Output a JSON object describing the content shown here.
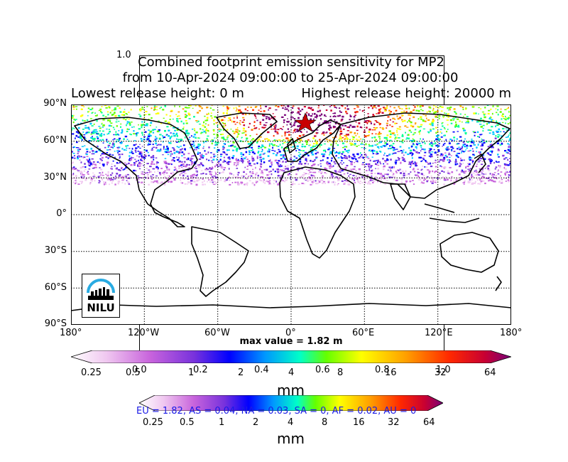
{
  "figure": {
    "title_line1": "Combined footprint emission sensitivity for MP2",
    "title_line2": "from 10-Apr-2024 09:00:00 to 25-Apr-2024 09:00:00",
    "title_line3_left": "Lowest release height: 0 m",
    "title_line3_right": "Highest release height: 20000 m",
    "ghost_axis_tick_top": "1.0",
    "max_value": "max value = 1.82 m"
  },
  "map": {
    "lat_labels": [
      "90°N",
      "60°N",
      "30°N",
      "0°",
      "30°S",
      "60°S",
      "90°S"
    ],
    "lon_labels": [
      "180°",
      "120°W",
      "60°W",
      "0°",
      "60°E",
      "120°E",
      "180°"
    ],
    "logo_text": "NILU"
  },
  "colorbar_main": {
    "ticks": [
      "0.25",
      "0.5",
      "1",
      "2",
      "4",
      "8",
      "16",
      "32",
      "64"
    ],
    "unit": "mm",
    "ghost_ticks": [
      "0.0",
      "0.2",
      "0.4",
      "0.6",
      "0.8",
      "1.0"
    ]
  },
  "colorbar_secondary": {
    "ticks": [
      "0.25",
      "0.5",
      "1",
      "2",
      "4",
      "8",
      "16",
      "32",
      "64"
    ],
    "unit": "mm",
    "region_text": "EU = 1.82,  AS = 0.04,  NA = 0.03,  SA = 0,  AF = 0.02,  AU = 0"
  },
  "colors": {
    "scale": [
      "#ffffff",
      "#f0c8f0",
      "#c864dc",
      "#7832dc",
      "#0000ff",
      "#00c8ff",
      "#00ff96",
      "#64ff00",
      "#ffff00",
      "#ffa000",
      "#ff3200",
      "#c80032",
      "#78007a"
    ]
  }
}
